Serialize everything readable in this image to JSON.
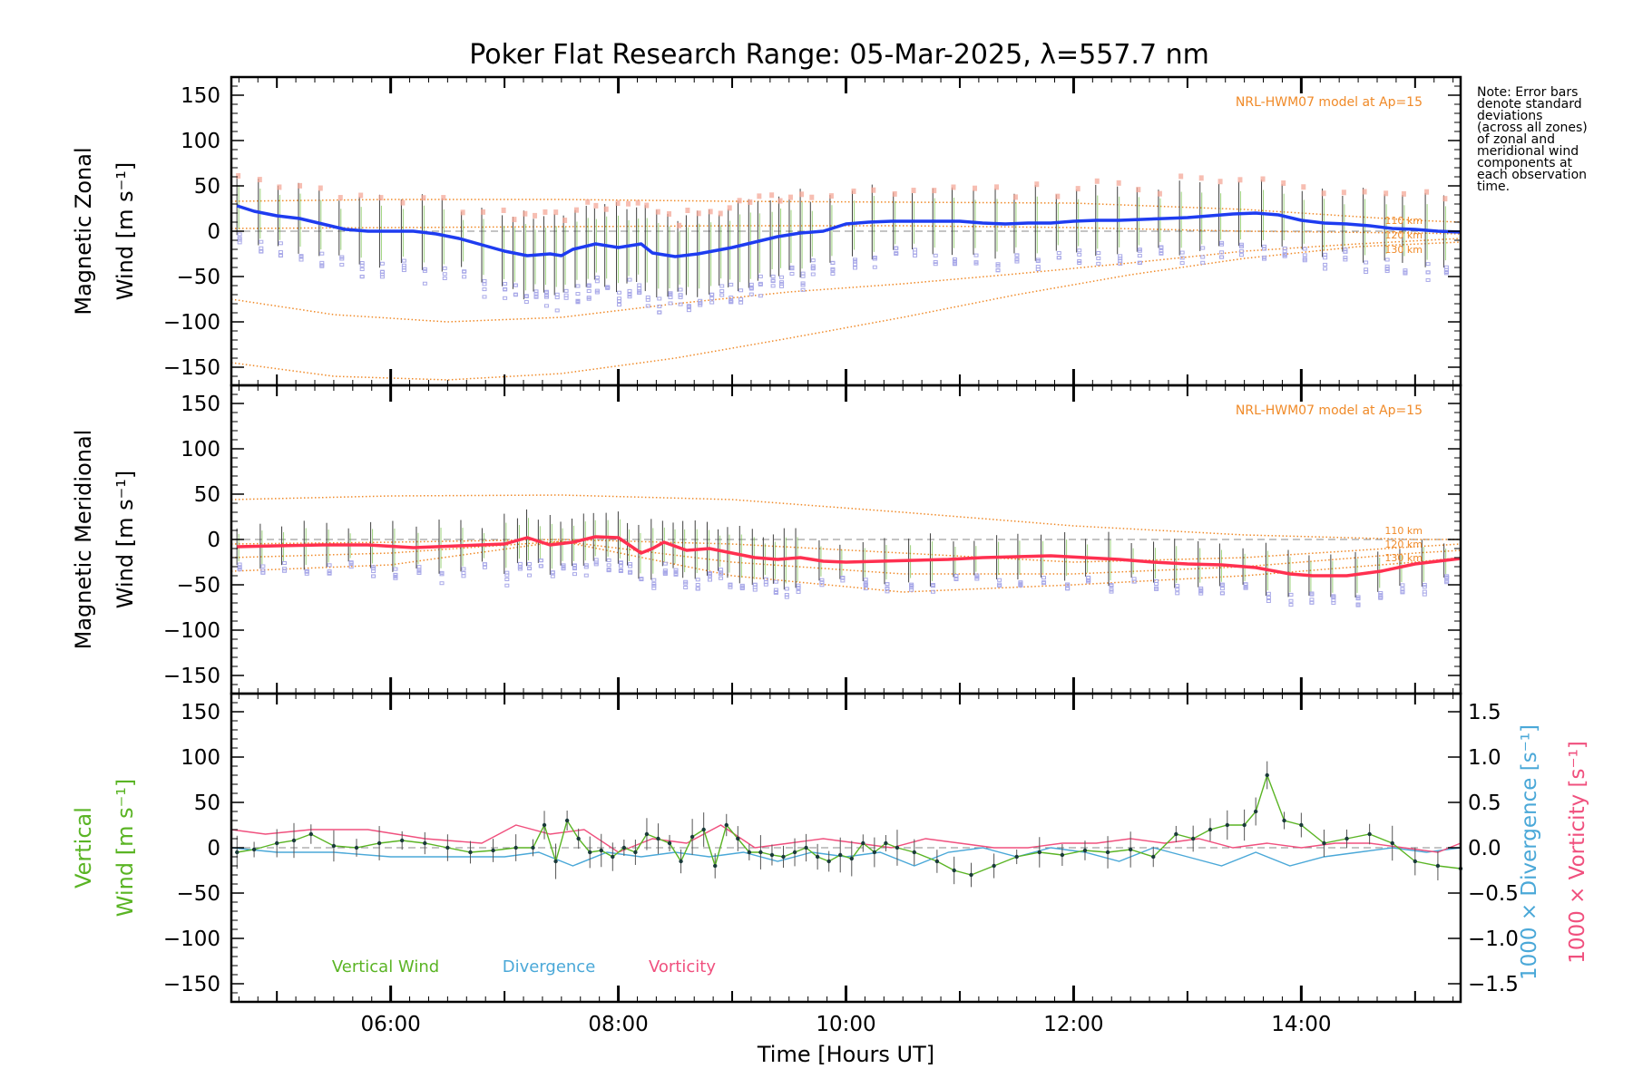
{
  "title": "Poker Flat Research Range: 05-Mar-2025, λ=557.7 nm",
  "note": [
    "Note: Error bars",
    "denote standard",
    "deviations",
    "(across all zones)",
    "of zonal and",
    "meridional wind",
    "components at",
    "each observation",
    "time."
  ],
  "colors": {
    "axes": "#000000",
    "zonal": "#1e3cf0",
    "meridional": "#ff3050",
    "vertical": "#5ab424",
    "divergence": "#4aa8d8",
    "vorticity": "#f0507e",
    "model": "#f08a28",
    "zone_points": "#a8a8e8",
    "zone_points_upper": "#f4a898",
    "error_bars": "#404040",
    "zero_line": "#888888"
  },
  "chart_data": [
    {
      "type": "line",
      "panel": "zonal",
      "ylabel": [
        "Magnetic Zonal",
        "Wind [m s⁻¹]"
      ],
      "xlim": [
        4.6,
        15.4
      ],
      "ylim": [
        -170,
        170
      ],
      "yticks": [
        150,
        100,
        50,
        0,
        -50,
        -100,
        -150
      ],
      "ytick_labels": [
        "150",
        "100",
        "50",
        "0",
        "−50",
        "−100",
        "−150"
      ],
      "model_label": "NRL-HWM07 model at Ap=15",
      "model_levels": [
        "110 km",
        "120 km",
        "130 km"
      ],
      "series": [
        {
          "name": "Zonal",
          "x": [
            4.65,
            4.8,
            5.0,
            5.2,
            5.4,
            5.6,
            5.8,
            6.0,
            6.2,
            6.4,
            6.6,
            6.8,
            7.0,
            7.2,
            7.4,
            7.5,
            7.6,
            7.8,
            8.0,
            8.2,
            8.3,
            8.5,
            8.7,
            9.0,
            9.2,
            9.4,
            9.6,
            9.8,
            10.0,
            10.2,
            10.4,
            10.6,
            10.8,
            11.0,
            11.2,
            11.4,
            11.6,
            11.8,
            12.0,
            12.2,
            12.4,
            12.6,
            12.8,
            13.0,
            13.2,
            13.4,
            13.6,
            13.8,
            14.0,
            14.2,
            14.4,
            14.6,
            14.8,
            15.0,
            15.2,
            15.4
          ],
          "y": [
            28,
            22,
            17,
            14,
            8,
            2,
            0,
            0,
            0,
            -3,
            -8,
            -15,
            -22,
            -27,
            -25,
            -27,
            -20,
            -14,
            -18,
            -14,
            -24,
            -28,
            -25,
            -18,
            -12,
            -6,
            -2,
            0,
            8,
            10,
            11,
            11,
            11,
            11,
            9,
            8,
            9,
            9,
            11,
            12,
            12,
            13,
            14,
            15,
            17,
            19,
            20,
            18,
            12,
            9,
            8,
            6,
            3,
            2,
            0,
            -1
          ]
        }
      ],
      "model_curves": [
        {
          "name": "110 km",
          "x": [
            4.6,
            6.0,
            7.5,
            9.0,
            10.5,
            12.0,
            13.5,
            15.0,
            15.4
          ],
          "y": [
            33,
            35,
            35,
            33,
            32,
            31,
            24,
            12,
            10
          ]
        },
        {
          "name": "120 km",
          "x": [
            4.6,
            5.5,
            6.5,
            7.5,
            8.5,
            9.5,
            10.5,
            11.5,
            12.5,
            13.5,
            14.5,
            15.4
          ],
          "y": [
            -75,
            -92,
            -100,
            -95,
            -80,
            -67,
            -58,
            -47,
            -35,
            -22,
            -14,
            -8
          ]
        },
        {
          "name": "130 km",
          "x": [
            4.6,
            5.5,
            6.5,
            7.5,
            8.5,
            9.5,
            10.5,
            11.5,
            12.5,
            13.5,
            14.5,
            15.4
          ],
          "y": [
            -145,
            -160,
            -164,
            -157,
            -140,
            -118,
            -95,
            -70,
            -48,
            -30,
            -17,
            -12
          ]
        },
        {
          "name": "upper dotted",
          "x": [
            4.6,
            6.0,
            7.5,
            9.0,
            10.5,
            12.0,
            13.5,
            15.0,
            15.4
          ],
          "y": [
            3,
            4,
            5,
            6,
            6,
            4,
            0,
            -2,
            -3
          ]
        }
      ]
    },
    {
      "type": "line",
      "panel": "meridional",
      "ylabel": [
        "Magnetic Meridional",
        "Wind [m s⁻¹]"
      ],
      "xlim": [
        4.6,
        15.4
      ],
      "ylim": [
        -170,
        170
      ],
      "yticks": [
        150,
        100,
        50,
        0,
        -50,
        -100,
        -150
      ],
      "ytick_labels": [
        "150",
        "100",
        "50",
        "0",
        "−50",
        "−100",
        "−150"
      ],
      "model_label": "NRL-HWM07 model at Ap=15",
      "model_levels": [
        "110 km",
        "120 km",
        "130 km"
      ],
      "series": [
        {
          "name": "Meridional",
          "x": [
            4.65,
            5.0,
            5.4,
            5.8,
            6.2,
            6.6,
            7.0,
            7.2,
            7.4,
            7.6,
            7.8,
            8.0,
            8.2,
            8.3,
            8.4,
            8.6,
            8.8,
            9.0,
            9.2,
            9.4,
            9.6,
            9.8,
            10.0,
            10.3,
            10.6,
            10.9,
            11.2,
            11.5,
            11.8,
            12.1,
            12.4,
            12.7,
            13.0,
            13.3,
            13.6,
            13.9,
            14.1,
            14.4,
            14.7,
            15.0,
            15.4
          ],
          "y": [
            -8,
            -7,
            -6,
            -6,
            -9,
            -7,
            -5,
            2,
            -6,
            -3,
            3,
            2,
            -15,
            -10,
            -3,
            -12,
            -10,
            -15,
            -20,
            -22,
            -20,
            -24,
            -25,
            -24,
            -23,
            -22,
            -20,
            -19,
            -18,
            -20,
            -22,
            -25,
            -27,
            -28,
            -31,
            -38,
            -40,
            -40,
            -35,
            -27,
            -21
          ]
        }
      ],
      "model_curves": [
        {
          "name": "upper",
          "x": [
            4.6,
            6.0,
            7.5,
            9.0,
            10.5,
            12.0,
            13.5,
            15.0,
            15.4
          ],
          "y": [
            44,
            48,
            49,
            44,
            30,
            15,
            5,
            0,
            0
          ]
        },
        {
          "name": "110 km",
          "x": [
            4.6,
            6.0,
            7.5,
            9.0,
            10.5,
            12.0,
            13.5,
            15.0,
            15.4
          ],
          "y": [
            -5,
            -3,
            0,
            -5,
            -15,
            -25,
            -20,
            -8,
            -5
          ]
        },
        {
          "name": "120 km",
          "x": [
            4.6,
            6.0,
            7.5,
            9.0,
            10.5,
            12.0,
            13.5,
            15.0,
            15.4
          ],
          "y": [
            -20,
            -15,
            -2,
            -25,
            -38,
            -38,
            -30,
            -15,
            -12
          ]
        },
        {
          "name": "130 km",
          "x": [
            4.6,
            6.0,
            7.5,
            9.0,
            10.5,
            12.0,
            13.5,
            15.0,
            15.4
          ],
          "y": [
            -35,
            -28,
            -2,
            -40,
            -58,
            -50,
            -40,
            -25,
            -20
          ]
        }
      ]
    },
    {
      "type": "line",
      "panel": "vertical",
      "ylabel": [
        "Vertical",
        "Wind [m s⁻¹]"
      ],
      "right_ylabel_divergence": "1000 × Divergence [s⁻¹]",
      "right_ylabel_vorticity": "1000 × Vorticity [s⁻¹]",
      "xlabel": "Time [Hours UT]",
      "xlim": [
        4.6,
        15.4
      ],
      "xticks": [
        6,
        8,
        10,
        12,
        14
      ],
      "xtick_labels": [
        "06:00",
        "08:00",
        "10:00",
        "12:00",
        "14:00"
      ],
      "ylim": [
        -170,
        170
      ],
      "yticks": [
        150,
        100,
        50,
        0,
        -50,
        -100,
        -150
      ],
      "ytick_labels": [
        "150",
        "100",
        "50",
        "0",
        "−50",
        "−100",
        "−150"
      ],
      "right_ylim": [
        -1.7,
        1.7
      ],
      "right_yticks": [
        1.5,
        1.0,
        0.5,
        0.0,
        -0.5,
        -1.0,
        -1.5
      ],
      "right_ytick_labels": [
        "1.5",
        "1.0",
        "0.5",
        "0.0",
        "−0.5",
        "−1.0",
        "−1.5"
      ],
      "legend": [
        "Vertical Wind",
        "Divergence",
        "Vorticity"
      ],
      "series": [
        {
          "name": "Vertical Wind",
          "x": [
            4.65,
            4.8,
            5.0,
            5.15,
            5.3,
            5.5,
            5.7,
            5.9,
            6.1,
            6.3,
            6.5,
            6.7,
            6.9,
            7.1,
            7.25,
            7.35,
            7.45,
            7.55,
            7.65,
            7.75,
            7.85,
            7.95,
            8.05,
            8.15,
            8.25,
            8.35,
            8.45,
            8.55,
            8.65,
            8.75,
            8.85,
            8.95,
            9.05,
            9.15,
            9.25,
            9.35,
            9.45,
            9.55,
            9.65,
            9.75,
            9.85,
            9.95,
            10.05,
            10.15,
            10.25,
            10.35,
            10.45,
            10.6,
            10.8,
            10.95,
            11.1,
            11.3,
            11.5,
            11.7,
            11.9,
            12.1,
            12.3,
            12.5,
            12.7,
            12.9,
            13.05,
            13.2,
            13.35,
            13.5,
            13.6,
            13.7,
            13.85,
            14.0,
            14.2,
            14.4,
            14.6,
            14.8,
            15.0,
            15.2,
            15.4
          ],
          "y": [
            -5,
            -2,
            5,
            8,
            15,
            2,
            0,
            5,
            8,
            5,
            0,
            -5,
            -3,
            0,
            0,
            25,
            -15,
            30,
            10,
            -5,
            -3,
            -10,
            0,
            -5,
            15,
            10,
            5,
            -15,
            12,
            20,
            -20,
            25,
            10,
            -5,
            -5,
            -8,
            -10,
            -5,
            0,
            -10,
            -15,
            -8,
            -12,
            5,
            -5,
            5,
            0,
            -5,
            -15,
            -25,
            -30,
            -20,
            -10,
            -5,
            -8,
            -3,
            -5,
            -2,
            -10,
            15,
            10,
            20,
            25,
            25,
            40,
            80,
            30,
            25,
            5,
            10,
            15,
            5,
            -15,
            -20,
            -23
          ]
        },
        {
          "name": "Divergence",
          "x": [
            4.6,
            5.0,
            5.5,
            6.0,
            6.5,
            7.0,
            7.3,
            7.6,
            7.9,
            8.2,
            8.5,
            8.8,
            9.1,
            9.4,
            9.7,
            10.0,
            10.3,
            10.6,
            10.9,
            11.2,
            11.5,
            11.8,
            12.1,
            12.4,
            12.7,
            13.0,
            13.3,
            13.6,
            13.9,
            14.2,
            14.5,
            14.8,
            15.1,
            15.4
          ],
          "y": [
            0.0,
            -0.05,
            -0.05,
            -0.1,
            -0.1,
            -0.1,
            -0.05,
            -0.2,
            -0.05,
            -0.1,
            -0.05,
            -0.1,
            -0.05,
            -0.15,
            -0.05,
            -0.1,
            -0.05,
            -0.2,
            -0.05,
            0.0,
            -0.1,
            0.0,
            -0.05,
            -0.15,
            0.0,
            -0.1,
            -0.2,
            -0.05,
            -0.2,
            -0.1,
            -0.05,
            0.0,
            -0.05,
            0.0
          ]
        },
        {
          "name": "Vorticity",
          "x": [
            4.6,
            4.9,
            5.3,
            5.8,
            6.3,
            6.8,
            7.1,
            7.4,
            7.7,
            8.0,
            8.3,
            8.6,
            8.9,
            9.2,
            9.5,
            9.8,
            10.1,
            10.4,
            10.7,
            11.0,
            11.3,
            11.6,
            11.9,
            12.2,
            12.5,
            12.8,
            13.1,
            13.4,
            13.7,
            14.0,
            14.3,
            14.6,
            14.9,
            15.2,
            15.4
          ],
          "y": [
            0.2,
            0.15,
            0.2,
            0.2,
            0.1,
            0.05,
            0.25,
            0.15,
            0.2,
            -0.05,
            0.1,
            0.05,
            0.25,
            0.0,
            0.05,
            0.1,
            0.05,
            0.0,
            0.1,
            0.05,
            0.0,
            0.0,
            0.05,
            0.05,
            0.1,
            0.05,
            0.1,
            0.0,
            0.05,
            0.0,
            0.05,
            0.05,
            0.0,
            -0.05,
            0.05
          ]
        }
      ]
    }
  ]
}
